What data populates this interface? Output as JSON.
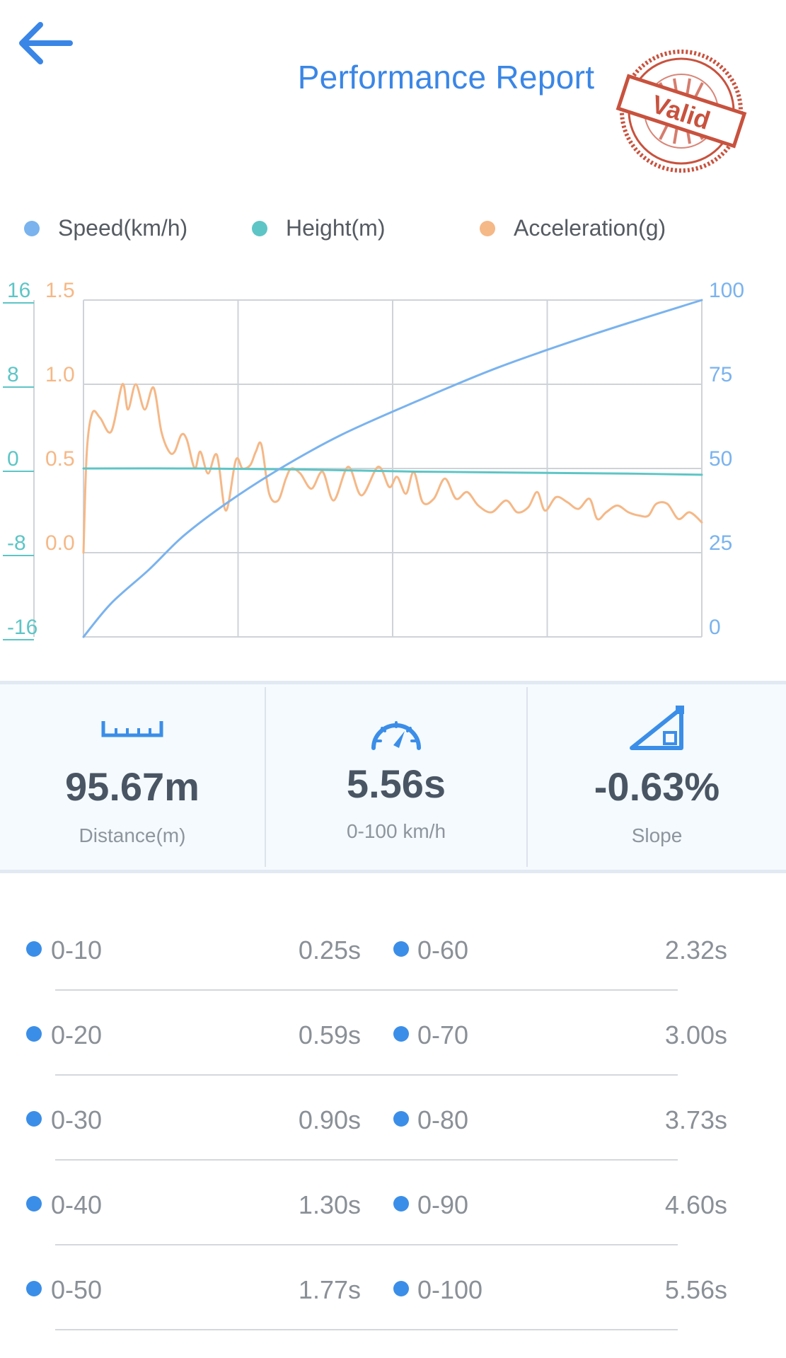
{
  "header": {
    "title": "Performance Report",
    "stamp_text": "Valid",
    "back_icon": "arrow-left-icon",
    "accent_color": "#3a86e6",
    "stamp_color": "#c8523e"
  },
  "legend": [
    {
      "label": "Speed(km/h)",
      "color": "#7ab3ee"
    },
    {
      "label": "Height(m)",
      "color": "#5ec5c6"
    },
    {
      "label": "Acceleration(g)",
      "color": "#f5b887"
    }
  ],
  "chart_data": {
    "type": "line",
    "x_ticks_count": 4,
    "axes": {
      "height": {
        "side": "left-outer",
        "ticks": [
          "16",
          "8",
          "0",
          "-8",
          "-16"
        ],
        "ylim": [
          -16,
          16
        ],
        "color": "#5ec5c6"
      },
      "acceleration": {
        "side": "left-inner",
        "ticks": [
          "1.5",
          "1.0",
          "0.5",
          "0.0"
        ],
        "ylim": [
          -0.5,
          1.5
        ],
        "color": "#f5b887"
      },
      "speed": {
        "side": "right",
        "ticks": [
          "100",
          "75",
          "50",
          "25",
          "0"
        ],
        "ylim": [
          0,
          100
        ],
        "color": "#7ab3ee"
      }
    },
    "grid": true,
    "legend_position": "top",
    "x": [
      0,
      0.25,
      0.59,
      0.9,
      1.3,
      1.77,
      2.32,
      3.0,
      3.73,
      4.6,
      5.56
    ],
    "series": [
      {
        "name": "Speed(km/h)",
        "axis": "speed",
        "color": "#7ab3ee",
        "x": [
          0,
          0.25,
          0.59,
          0.9,
          1.3,
          1.77,
          2.32,
          3.0,
          3.73,
          4.6,
          5.56
        ],
        "values": [
          0,
          10,
          20,
          30,
          40,
          50,
          60,
          70,
          80,
          90,
          100
        ]
      },
      {
        "name": "Height(m)",
        "axis": "height",
        "color": "#5ec5c6",
        "x": [
          0,
          1.0,
          2.0,
          3.0,
          4.0,
          5.0,
          5.56
        ],
        "values": [
          0.0,
          0.0,
          -0.1,
          -0.3,
          -0.4,
          -0.5,
          -0.6
        ]
      },
      {
        "name": "Acceleration(g)",
        "axis": "acceleration",
        "color": "#f5b887",
        "x": [
          0,
          0.03,
          0.08,
          0.15,
          0.25,
          0.35,
          0.4,
          0.47,
          0.55,
          0.63,
          0.7,
          0.77,
          0.82,
          0.88,
          0.93,
          1.0,
          1.05,
          1.12,
          1.2,
          1.28,
          1.37,
          1.43,
          1.5,
          1.55,
          1.6,
          1.67,
          1.75,
          1.82,
          1.87,
          1.95,
          2.05,
          2.15,
          2.25,
          2.38,
          2.5,
          2.65,
          2.75,
          2.82,
          2.9,
          2.97,
          3.05,
          3.15,
          3.25,
          3.35,
          3.45,
          3.55,
          3.67,
          3.8,
          3.9,
          4.0,
          4.08,
          4.15,
          4.25,
          4.35,
          4.45,
          4.55,
          4.62,
          4.7,
          4.8,
          4.9,
          5.0,
          5.08,
          5.15,
          5.25,
          5.35,
          5.45,
          5.56
        ],
        "values": [
          0.0,
          0.6,
          0.83,
          0.8,
          0.72,
          1.0,
          0.85,
          1.0,
          0.85,
          0.98,
          0.72,
          0.6,
          0.6,
          0.7,
          0.67,
          0.5,
          0.6,
          0.47,
          0.58,
          0.25,
          0.55,
          0.5,
          0.52,
          0.6,
          0.64,
          0.35,
          0.31,
          0.44,
          0.5,
          0.47,
          0.38,
          0.48,
          0.31,
          0.51,
          0.34,
          0.51,
          0.39,
          0.45,
          0.35,
          0.48,
          0.3,
          0.32,
          0.44,
          0.32,
          0.36,
          0.28,
          0.24,
          0.31,
          0.24,
          0.27,
          0.36,
          0.25,
          0.33,
          0.3,
          0.26,
          0.32,
          0.2,
          0.24,
          0.28,
          0.24,
          0.22,
          0.22,
          0.29,
          0.29,
          0.2,
          0.24,
          0.18
        ]
      }
    ]
  },
  "stats": [
    {
      "value": "95.67m",
      "label": "Distance(m)",
      "icon": "ruler-icon"
    },
    {
      "value": "5.56s",
      "label": "0-100 km/h",
      "icon": "speedometer-icon"
    },
    {
      "value": "-0.63%",
      "label": "Slope",
      "icon": "slope-icon"
    }
  ],
  "split_times": [
    {
      "left_label": "0-10",
      "left_value": "0.25s",
      "right_label": "0-60",
      "right_value": "2.32s"
    },
    {
      "left_label": "0-20",
      "left_value": "0.59s",
      "right_label": "0-70",
      "right_value": "3.00s"
    },
    {
      "left_label": "0-30",
      "left_value": "0.90s",
      "right_label": "0-80",
      "right_value": "3.73s"
    },
    {
      "left_label": "0-40",
      "left_value": "1.30s",
      "right_label": "0-90",
      "right_value": "4.60s"
    },
    {
      "left_label": "0-50",
      "left_value": "1.77s",
      "right_label": "0-100",
      "right_value": "5.56s"
    }
  ]
}
